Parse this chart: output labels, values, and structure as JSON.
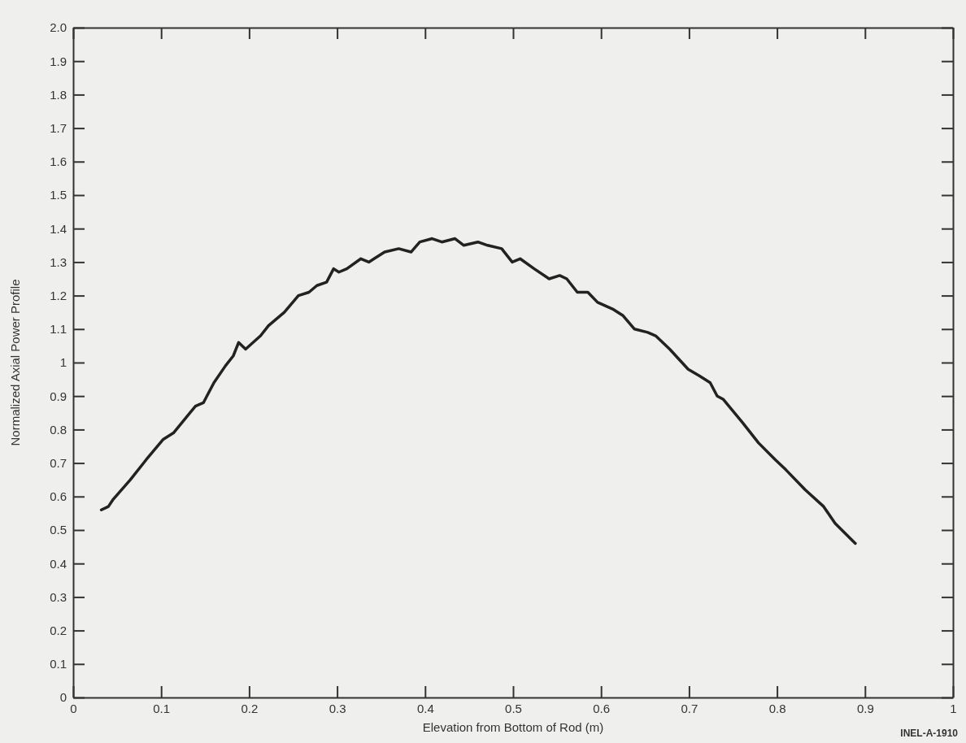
{
  "chart_data": {
    "type": "line",
    "xlabel": "Elevation from Bottom of Rod (m)",
    "ylabel": "Normalized Axial Power Profile",
    "annotations": [
      "INEL-A-1910"
    ],
    "xlim": [
      0,
      1
    ],
    "xticks": [
      0,
      0.1,
      0.2,
      0.3,
      0.4,
      0.5,
      0.6,
      0.7,
      0.8,
      0.9,
      1
    ],
    "ylim": [
      0,
      2
    ],
    "yticks": [
      0,
      0.1,
      0.2,
      0.3,
      0.4,
      0.5,
      0.6,
      0.7,
      0.8,
      0.9,
      1,
      1.1,
      1.2,
      1.3,
      1.4,
      1.5,
      1.6,
      1.7,
      1.8,
      1.9,
      {
        "value": 2,
        "label": "2.0"
      }
    ],
    "grid": false,
    "series": [
      {
        "color": "#222222",
        "x": [
          0.032,
          0.04,
          0.045,
          0.065,
          0.083,
          0.102,
          0.114,
          0.139,
          0.148,
          0.16,
          0.173,
          0.182,
          0.188,
          0.196,
          0.213,
          0.222,
          0.24,
          0.256,
          0.268,
          0.277,
          0.288,
          0.296,
          0.302,
          0.311,
          0.327,
          0.336,
          0.342,
          0.354,
          0.37,
          0.384,
          0.394,
          0.408,
          0.419,
          0.434,
          0.444,
          0.46,
          0.471,
          0.487,
          0.499,
          0.508,
          0.524,
          0.541,
          0.553,
          0.561,
          0.573,
          0.585,
          0.596,
          0.613,
          0.625,
          0.638,
          0.653,
          0.662,
          0.678,
          0.699,
          0.712,
          0.724,
          0.732,
          0.739,
          0.761,
          0.779,
          0.798,
          0.81,
          0.832,
          0.853,
          0.866,
          0.889
        ],
        "values": [
          0.56,
          0.57,
          0.59,
          0.65,
          0.71,
          0.77,
          0.79,
          0.87,
          0.88,
          0.94,
          0.99,
          1.02,
          1.06,
          1.04,
          1.08,
          1.11,
          1.15,
          1.2,
          1.21,
          1.23,
          1.24,
          1.28,
          1.27,
          1.28,
          1.31,
          1.3,
          1.31,
          1.33,
          1.34,
          1.33,
          1.36,
          1.37,
          1.36,
          1.37,
          1.35,
          1.36,
          1.35,
          1.34,
          1.3,
          1.31,
          1.28,
          1.25,
          1.26,
          1.25,
          1.21,
          1.21,
          1.18,
          1.16,
          1.14,
          1.1,
          1.09,
          1.08,
          1.04,
          0.98,
          0.96,
          0.94,
          0.9,
          0.89,
          0.82,
          0.76,
          0.71,
          0.68,
          0.62,
          0.57,
          0.52,
          0.46
        ]
      }
    ]
  }
}
